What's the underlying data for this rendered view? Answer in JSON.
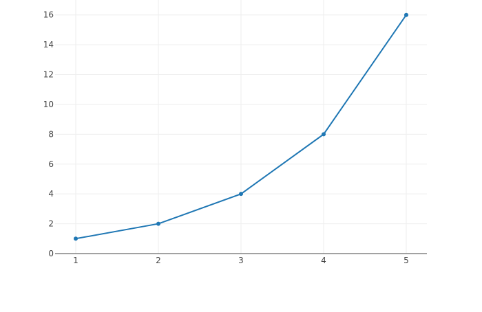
{
  "chart_data": {
    "type": "line",
    "x": [
      1,
      2,
      3,
      4,
      5
    ],
    "series": [
      {
        "values": [
          1,
          2,
          4,
          8,
          16
        ],
        "color": "#1f77b4",
        "mode": "lines+markers"
      }
    ],
    "xlim": [
      0.75,
      5.25
    ],
    "ylim": [
      0,
      17
    ],
    "xticks": [
      1,
      2,
      3,
      4,
      5
    ],
    "yticks": [
      0,
      2,
      4,
      6,
      8,
      10,
      12,
      14,
      16
    ],
    "grid": true,
    "title": "",
    "xlabel": "",
    "ylabel": ""
  }
}
